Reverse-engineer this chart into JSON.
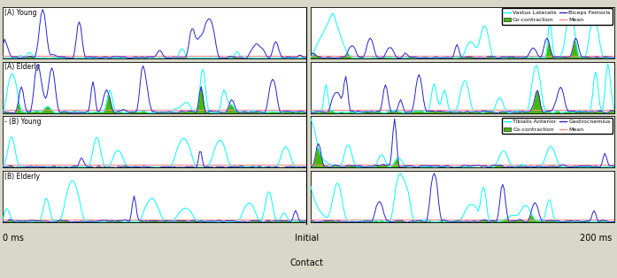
{
  "fig_width": 6.97,
  "fig_height": 3.14,
  "dpi": 100,
  "label_young_A": "(A) Young",
  "label_elderly_A": "(A) Elderly",
  "label_young_B": "- (B) Young",
  "label_elderly_B": "(B) Elderly",
  "color_vastus": "#00FFFF",
  "color_biceps": "#2222CC",
  "color_tibialis": "#00FFFF",
  "color_gastrocnemius": "#2222CC",
  "color_cocontraction": "#44BB00",
  "color_mean": "#FF8888",
  "xlabel_left": "0 ms",
  "xlabel_mid_top": "Initial",
  "xlabel_mid_bot": "Contact",
  "xlabel_right": "200 ms",
  "panel_bg": "#FFFFFF",
  "fig_bg": "#D8D8C8",
  "mean_level_AB": 0.06,
  "mean_level_B": 0.06
}
